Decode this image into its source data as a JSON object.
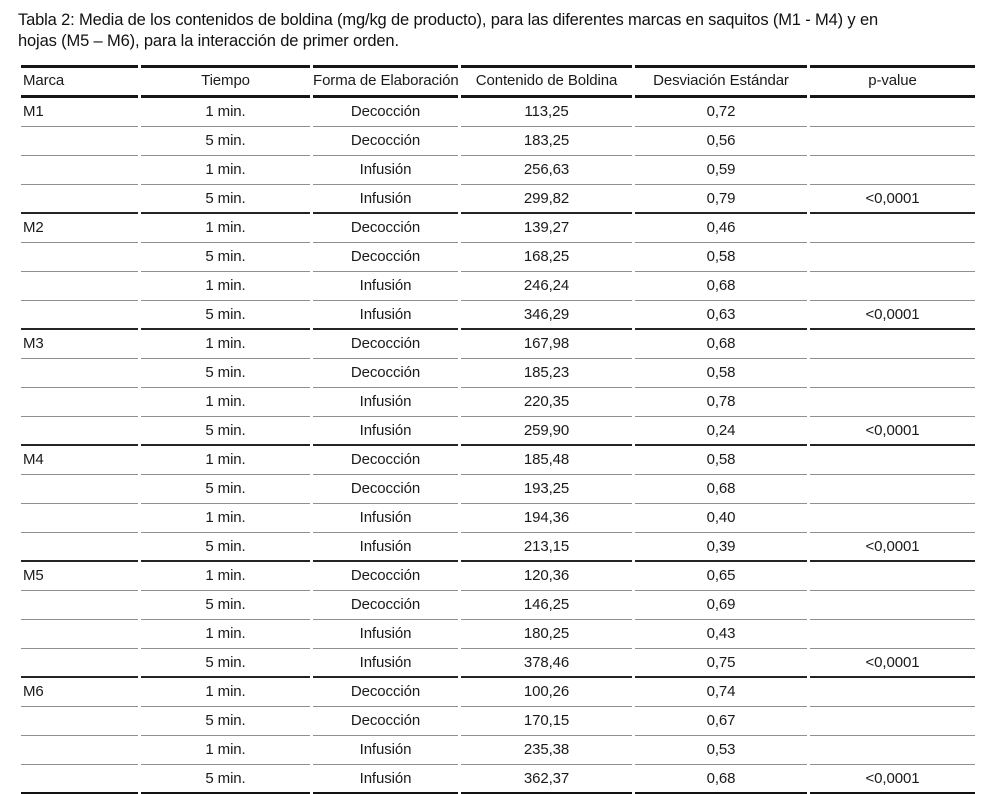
{
  "caption": {
    "line1": "Tabla 2: Media de los contenidos de boldina (mg/kg de producto), para las diferentes marcas en saquitos (M1 - M4) y en",
    "line2": "hojas (M5 – M6), para la interacción de primer orden."
  },
  "table": {
    "columns": [
      "Marca",
      "Tiempo",
      "Forma de Elaboración",
      "Contenido de Boldina",
      "Desviación Estándar",
      "p-value"
    ],
    "groups": [
      {
        "marca": "M1",
        "rows": [
          {
            "marca": "M1",
            "tiempo": "1 min.",
            "forma": "Decocción",
            "contenido": "113,25",
            "desviacion": "0,72",
            "p_value": ""
          },
          {
            "marca": "",
            "tiempo": "5 min.",
            "forma": "Decocción",
            "contenido": "183,25",
            "desviacion": "0,56",
            "p_value": ""
          },
          {
            "marca": "",
            "tiempo": "1 min.",
            "forma": "Infusión",
            "contenido": "256,63",
            "desviacion": "0,59",
            "p_value": ""
          },
          {
            "marca": "",
            "tiempo": "5 min.",
            "forma": "Infusión",
            "contenido": "299,82",
            "desviacion": "0,79",
            "p_value": "<0,0001"
          }
        ]
      },
      {
        "marca": "M2",
        "rows": [
          {
            "marca": "M2",
            "tiempo": "1 min.",
            "forma": "Decocción",
            "contenido": "139,27",
            "desviacion": "0,46",
            "p_value": ""
          },
          {
            "marca": "",
            "tiempo": "5 min.",
            "forma": "Decocción",
            "contenido": "168,25",
            "desviacion": "0,58",
            "p_value": ""
          },
          {
            "marca": "",
            "tiempo": "1 min.",
            "forma": "Infusión",
            "contenido": "246,24",
            "desviacion": "0,68",
            "p_value": ""
          },
          {
            "marca": "",
            "tiempo": "5 min.",
            "forma": "Infusión",
            "contenido": "346,29",
            "desviacion": "0,63",
            "p_value": "<0,0001"
          }
        ]
      },
      {
        "marca": "M3",
        "rows": [
          {
            "marca": "M3",
            "tiempo": "1 min.",
            "forma": "Decocción",
            "contenido": "167,98",
            "desviacion": "0,68",
            "p_value": ""
          },
          {
            "marca": "",
            "tiempo": "5 min.",
            "forma": "Decocción",
            "contenido": "185,23",
            "desviacion": "0,58",
            "p_value": ""
          },
          {
            "marca": "",
            "tiempo": "1 min.",
            "forma": "Infusión",
            "contenido": "220,35",
            "desviacion": "0,78",
            "p_value": ""
          },
          {
            "marca": "",
            "tiempo": "5 min.",
            "forma": "Infusión",
            "contenido": "259,90",
            "desviacion": "0,24",
            "p_value": "<0,0001"
          }
        ]
      },
      {
        "marca": "M4",
        "rows": [
          {
            "marca": "M4",
            "tiempo": "1 min.",
            "forma": "Decocción",
            "contenido": "185,48",
            "desviacion": "0,58",
            "p_value": ""
          },
          {
            "marca": "",
            "tiempo": "5 min.",
            "forma": "Decocción",
            "contenido": "193,25",
            "desviacion": "0,68",
            "p_value": ""
          },
          {
            "marca": "",
            "tiempo": "1 min.",
            "forma": "Infusión",
            "contenido": "194,36",
            "desviacion": "0,40",
            "p_value": ""
          },
          {
            "marca": "",
            "tiempo": "5 min.",
            "forma": "Infusión",
            "contenido": "213,15",
            "desviacion": "0,39",
            "p_value": "<0,0001"
          }
        ]
      },
      {
        "marca": "M5",
        "rows": [
          {
            "marca": "M5",
            "tiempo": "1 min.",
            "forma": "Decocción",
            "contenido": "120,36",
            "desviacion": "0,65",
            "p_value": ""
          },
          {
            "marca": "",
            "tiempo": "5 min.",
            "forma": "Decocción",
            "contenido": "146,25",
            "desviacion": "0,69",
            "p_value": ""
          },
          {
            "marca": "",
            "tiempo": "1 min.",
            "forma": "Infusión",
            "contenido": "180,25",
            "desviacion": "0,43",
            "p_value": ""
          },
          {
            "marca": "",
            "tiempo": "5 min.",
            "forma": "Infusión",
            "contenido": "378,46",
            "desviacion": "0,75",
            "p_value": "<0,0001"
          }
        ]
      },
      {
        "marca": "M6",
        "rows": [
          {
            "marca": "M6",
            "tiempo": "1 min.",
            "forma": "Decocción",
            "contenido": "100,26",
            "desviacion": "0,74",
            "p_value": ""
          },
          {
            "marca": "",
            "tiempo": "5 min.",
            "forma": "Decocción",
            "contenido": "170,15",
            "desviacion": "0,67",
            "p_value": ""
          },
          {
            "marca": "",
            "tiempo": "1 min.",
            "forma": "Infusión",
            "contenido": "235,38",
            "desviacion": "0,53",
            "p_value": ""
          },
          {
            "marca": "",
            "tiempo": "5 min.",
            "forma": "Infusión",
            "contenido": "362,37",
            "desviacion": "0,68",
            "p_value": "<0,0001"
          }
        ]
      }
    ]
  }
}
